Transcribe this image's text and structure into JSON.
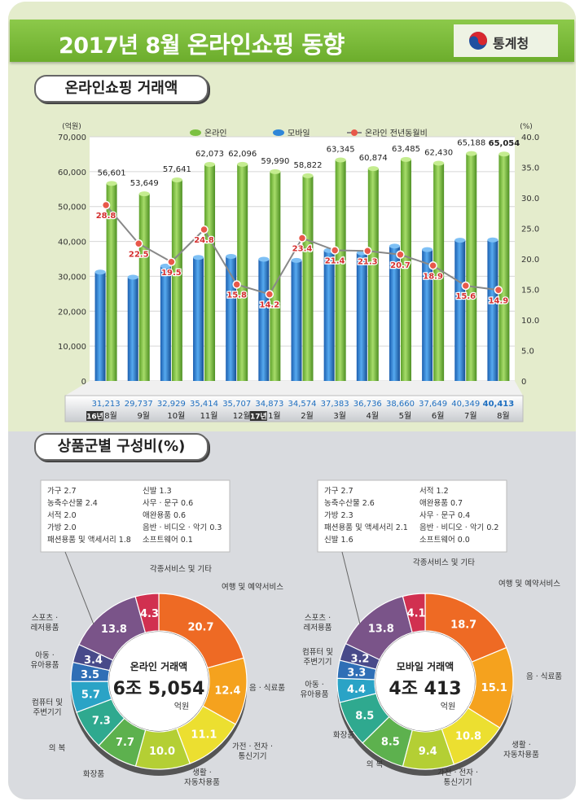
{
  "header": {
    "title_prefix": "2017년 8월 ",
    "title_main": "온라인쇼핑 동향",
    "agency": "통계청"
  },
  "section1": {
    "title": "온라인쇼핑 거래액"
  },
  "section2": {
    "title": "상품군별 구성비(%)"
  },
  "chart_data": [
    {
      "type": "bar",
      "title": "온라인쇼핑 거래액",
      "left_unit": "(억원)",
      "right_unit": "(%)",
      "categories": [
        "8월",
        "9월",
        "10월",
        "11월",
        "12월",
        "1월",
        "2월",
        "3월",
        "4월",
        "5월",
        "6월",
        "7월",
        "8월"
      ],
      "year_tags": [
        {
          "label": "16년",
          "index": 0
        },
        {
          "label": "17년",
          "index": 5
        }
      ],
      "ylim": [
        0,
        70000
      ],
      "y_ticks": [
        "70,000",
        "60,000",
        "50,000",
        "40,000",
        "30,000",
        "20,000",
        "10,000",
        "0"
      ],
      "y2lim": [
        0,
        40
      ],
      "y2_ticks": [
        "40.0",
        "35.0",
        "30.0",
        "25.0",
        "20.0",
        "15.0",
        "10.0",
        "5.0",
        "0"
      ],
      "legend_position": "top",
      "series": [
        {
          "name": "온라인",
          "color": "#7cc142",
          "values": [
            56601,
            53649,
            57641,
            62073,
            62096,
            59990,
            58822,
            63345,
            60874,
            63485,
            62430,
            65188,
            65054
          ],
          "labels": [
            "56,601",
            "53,649",
            "57,641",
            "62,073",
            "62,096",
            "59,990",
            "58,822",
            "63,345",
            "60,874",
            "63,485",
            "62,430",
            "65,188",
            "65,054"
          ]
        },
        {
          "name": "모바일",
          "color": "#2f86d8",
          "values": [
            31213,
            29737,
            32929,
            35414,
            35707,
            34873,
            34574,
            37383,
            36736,
            38660,
            37649,
            40349,
            40413
          ],
          "labels": [
            "31,213",
            "29,737",
            "32,929",
            "35,414",
            "35,707",
            "34,873",
            "34,574",
            "37,383",
            "36,736",
            "38,660",
            "37,649",
            "40,349",
            "40,413"
          ]
        },
        {
          "name": "온라인 전년동월비",
          "color": "#888888",
          "axis": "right",
          "values": [
            28.8,
            22.5,
            19.5,
            24.8,
            15.8,
            14.2,
            23.4,
            21.4,
            21.3,
            20.7,
            18.9,
            15.6,
            14.9
          ],
          "labels": [
            "28.8",
            "22.5",
            "19.5",
            "24.8",
            "15.8",
            "14.2",
            "23.4",
            "21.4",
            "21.3",
            "20.7",
            "18.9",
            "15.6",
            "14.9"
          ]
        }
      ]
    },
    {
      "type": "pie",
      "title": "온라인 거래액",
      "center_value": "6조 5,054",
      "center_unit": "억원",
      "slices": [
        {
          "label": "여행 및 예약서비스",
          "value": 20.7,
          "color": "#ee6a24"
        },
        {
          "label": "음 · 식료품",
          "value": 12.4,
          "color": "#f5a21e"
        },
        {
          "label": "가전 · 전자 · 통신기기",
          "value": 11.1,
          "color": "#ecdf30"
        },
        {
          "label": "생활 · 자동차용품",
          "value": 10.0,
          "color": "#b4cf34"
        },
        {
          "label": "화장품",
          "value": 7.7,
          "color": "#5db14e"
        },
        {
          "label": "의 복",
          "value": 7.3,
          "color": "#2fa98f"
        },
        {
          "label": "컴퓨터 및 주변기기",
          "value": 5.7,
          "color": "#2aa3c6"
        },
        {
          "label": "아동 · 유아용품",
          "value": 3.5,
          "color": "#2f6fb6"
        },
        {
          "label": "스포츠 · 레저용품",
          "value": 3.4,
          "color": "#484a8a"
        },
        {
          "label": "",
          "value": 13.8,
          "color": "#7a5489"
        },
        {
          "label": "각종서비스 및 기타",
          "value": 4.3,
          "color": "#d13050"
        }
      ],
      "small_items": [
        [
          "가구 2.7",
          "신발 1.3"
        ],
        [
          "농축수산물 2.4",
          "사무 · 문구 0.6"
        ],
        [
          "서적 2.0",
          "애완용품 0.6"
        ],
        [
          "가방 2.0",
          "음반 · 비디오 · 악기 0.3"
        ],
        [
          "패션용품 및 액세서리 1.8",
          "소프트웨어 0.1"
        ]
      ]
    },
    {
      "type": "pie",
      "title": "모바일 거래액",
      "center_value": "4조 413",
      "center_unit": "억원",
      "slices": [
        {
          "label": "여행 및 예약서비스",
          "value": 18.7,
          "color": "#ee6a24"
        },
        {
          "label": "음 · 식료품",
          "value": 15.1,
          "color": "#f5a21e"
        },
        {
          "label": "생활 · 자동차용품",
          "value": 10.8,
          "color": "#ecdf30"
        },
        {
          "label": "가전 · 전자 · 통신기기",
          "value": 9.4,
          "color": "#b4cf34"
        },
        {
          "label": "의 복",
          "value": 8.5,
          "color": "#5db14e"
        },
        {
          "label": "화장품",
          "value": 8.5,
          "color": "#2fa98f"
        },
        {
          "label": "아동 · 유아용품",
          "value": 4.4,
          "color": "#2aa3c6"
        },
        {
          "label": "",
          "value": 3.3,
          "color": "#2f6fb6"
        },
        {
          "label": "컴퓨터 및 주변기기",
          "value": 3.2,
          "color": "#484a8a"
        },
        {
          "label": "스포츠 · 레저용품",
          "value": 13.8,
          "color": "#7a5489"
        },
        {
          "label": "각종서비스 및 기타",
          "value": 4.1,
          "color": "#d13050"
        }
      ],
      "small_items": [
        [
          "가구 2.7",
          "서적 1.2"
        ],
        [
          "농축수산물 2.6",
          "애완용품 0.7"
        ],
        [
          "가방 2.3",
          "사무 · 문구 0.4"
        ],
        [
          "패션용품 및 액세서리 2.1",
          "음반 · 비디오 · 악기 0.2"
        ],
        [
          "신발 1.6",
          "소프트웨어 0.0"
        ]
      ]
    }
  ]
}
